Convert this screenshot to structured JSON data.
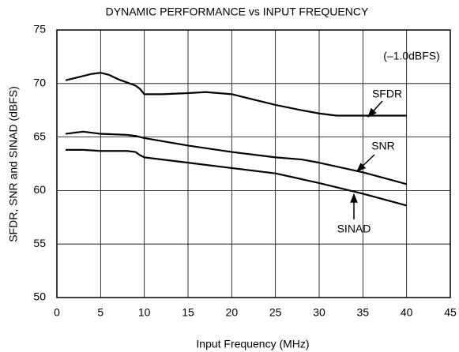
{
  "chart_data": {
    "type": "line",
    "title": "DYNAMIC PERFORMANCE vs INPUT FREQUENCY",
    "x_label": "Input Frequency (MHz)",
    "y_label": "SFDR, SNR and SINAD (dBFS)",
    "annotation": "(–1.0dBFS)",
    "xlim": [
      0,
      45
    ],
    "xticks": [
      0,
      5,
      10,
      15,
      20,
      25,
      30,
      35,
      40,
      45
    ],
    "ylim": [
      50,
      75
    ],
    "yticks": [
      50,
      55,
      60,
      65,
      70,
      75
    ],
    "grid": true,
    "series": [
      {
        "name": "SFDR",
        "color": "#000000",
        "x": [
          1,
          2,
          3,
          4,
          5,
          6,
          7,
          8,
          9,
          9.5,
          10,
          12,
          15,
          17,
          20,
          22,
          25,
          28,
          30,
          32,
          35,
          38,
          40
        ],
        "values": [
          70.3,
          70.5,
          70.7,
          70.9,
          71.0,
          70.8,
          70.4,
          70.1,
          69.8,
          69.5,
          69.0,
          69.0,
          69.1,
          69.2,
          69.0,
          68.6,
          68.0,
          67.5,
          67.2,
          67.0,
          67.0,
          67.0,
          67.0
        ]
      },
      {
        "name": "SNR",
        "color": "#000000",
        "x": [
          1,
          3,
          5,
          8,
          9,
          10,
          15,
          20,
          25,
          28,
          30,
          35,
          40
        ],
        "values": [
          65.3,
          65.5,
          65.3,
          65.2,
          65.1,
          64.9,
          64.2,
          63.6,
          63.1,
          62.9,
          62.6,
          61.7,
          60.6
        ]
      },
      {
        "name": "SINAD",
        "color": "#000000",
        "x": [
          1,
          3,
          5,
          8,
          9,
          9.5,
          10,
          15,
          20,
          25,
          30,
          35,
          40
        ],
        "values": [
          63.8,
          63.8,
          63.7,
          63.7,
          63.6,
          63.3,
          63.1,
          62.6,
          62.1,
          61.6,
          60.7,
          59.7,
          58.6
        ]
      }
    ]
  }
}
